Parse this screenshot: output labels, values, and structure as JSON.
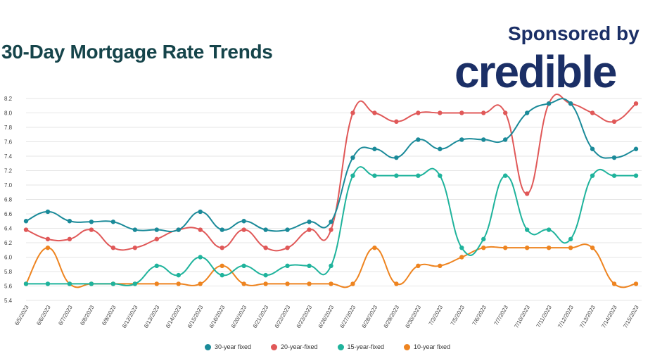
{
  "header": {
    "title": "30-Day Mortgage Rate Trends",
    "sponsor_text": "Sponsored by",
    "brand": "credible"
  },
  "chart_data": {
    "type": "line",
    "categories": [
      "6/5/2023",
      "6/6/2023",
      "6/7/2023",
      "6/8/2023",
      "6/9/2023",
      "6/12/2023",
      "6/13/2023",
      "6/14/2023",
      "6/15/2023",
      "6/16/2023",
      "6/20/2023",
      "6/21/2023",
      "6/22/2023",
      "6/23/2023",
      "6/26/2023",
      "6/27/2023",
      "6/28/2023",
      "6/29/2023",
      "6/30/2023",
      "7/3/2023",
      "7/5/2023",
      "7/6/2023",
      "7/7/2023",
      "7/10/2023",
      "7/11/2023",
      "7/12/2023",
      "7/13/2023",
      "7/14/2023",
      "7/15/2023"
    ],
    "ylim": [
      5.4,
      8.2
    ],
    "yticks": [
      "5.4",
      "5.6",
      "5.8",
      "6.0",
      "6.2",
      "6.4",
      "6.6",
      "6.8",
      "7.0",
      "7.2",
      "7.4",
      "7.6",
      "7.8",
      "8.0",
      "8.2"
    ],
    "grid": true,
    "legend_position": "bottom",
    "series": [
      {
        "name": "30-year fixed",
        "color": "#1a8a99",
        "values": [
          6.5,
          6.63,
          6.5,
          6.49,
          6.49,
          6.38,
          6.38,
          6.38,
          6.63,
          6.38,
          6.5,
          6.38,
          6.38,
          6.49,
          6.49,
          7.38,
          7.5,
          7.38,
          7.63,
          7.5,
          7.63,
          7.63,
          7.63,
          8.0,
          8.13,
          8.13,
          7.5,
          7.38,
          7.5
        ]
      },
      {
        "name": "20-year-fixed",
        "color": "#e05858",
        "values": [
          6.38,
          6.25,
          6.25,
          6.38,
          6.13,
          6.13,
          6.25,
          6.38,
          6.38,
          6.13,
          6.38,
          6.13,
          6.13,
          6.38,
          6.38,
          8.0,
          8.0,
          7.88,
          8.0,
          8.0,
          8.0,
          8.0,
          8.0,
          6.88,
          8.13,
          8.13,
          8.0,
          7.88,
          8.13
        ]
      },
      {
        "name": "15-year-fixed",
        "color": "#1fb39c",
        "values": [
          5.63,
          5.63,
          5.63,
          5.63,
          5.63,
          5.63,
          5.88,
          5.75,
          6.0,
          5.75,
          5.88,
          5.75,
          5.88,
          5.88,
          5.88,
          7.13,
          7.13,
          7.13,
          7.13,
          7.13,
          6.13,
          6.25,
          7.13,
          6.38,
          6.38,
          6.25,
          7.13,
          7.13,
          7.13
        ]
      },
      {
        "name": "10-year fixed",
        "color": "#ee8420",
        "values": [
          5.63,
          6.13,
          5.63,
          5.63,
          5.63,
          5.63,
          5.63,
          5.63,
          5.63,
          5.88,
          5.63,
          5.63,
          5.63,
          5.63,
          5.63,
          5.63,
          6.13,
          5.63,
          5.88,
          5.88,
          6.0,
          6.13,
          6.13,
          6.13,
          6.13,
          6.13,
          6.13,
          5.63,
          5.63
        ]
      }
    ]
  }
}
